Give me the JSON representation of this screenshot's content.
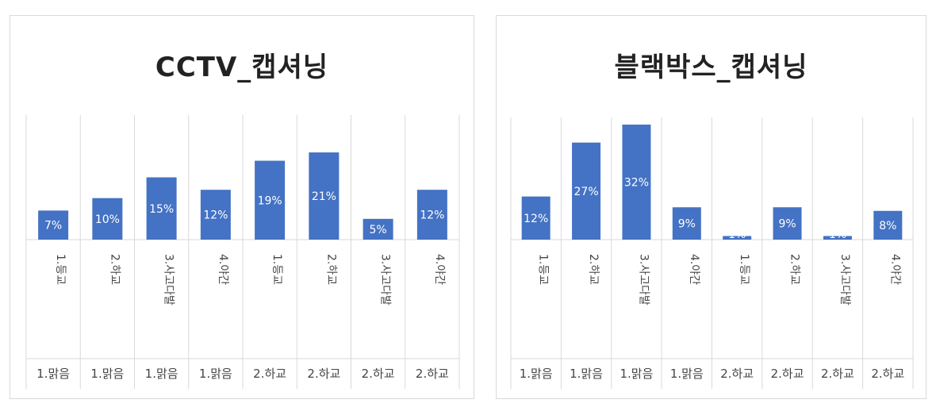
{
  "chart_data": [
    {
      "type": "bar",
      "title": "CCTV_캡셔닝",
      "categories": [
        "1.등교",
        "2.하교",
        "3.사고다발",
        "4.야간",
        "1.등교",
        "2.하교",
        "3.사고다발",
        "4.야간"
      ],
      "groups": [
        "1.맑음",
        "1.맑음",
        "1.맑음",
        "1.맑음",
        "2.하교",
        "2.하교",
        "2.하교",
        "2.하교"
      ],
      "values": [
        7,
        10,
        15,
        12,
        19,
        21,
        5,
        12
      ],
      "data_labels": [
        "7%",
        "10%",
        "15%",
        "12%",
        "19%",
        "21%",
        "5%",
        "12%"
      ],
      "ylim": [
        0,
        30
      ],
      "grid": false,
      "legend": "none",
      "bar_color": "#4472c4"
    },
    {
      "type": "bar",
      "title": "블랙박스_캡셔닝",
      "categories": [
        "1.등교",
        "2.하교",
        "3.사고다발",
        "4.야간",
        "1.등교",
        "2.하교",
        "3.사고다발",
        "4.야간"
      ],
      "groups": [
        "1.맑음",
        "1.맑음",
        "1.맑음",
        "1.맑음",
        "2.하교",
        "2.하교",
        "2.하교",
        "2.하교"
      ],
      "values": [
        12,
        27,
        32,
        9,
        1,
        9,
        1,
        8
      ],
      "data_labels": [
        "12%",
        "27%",
        "32%",
        "9%",
        "1%",
        "9%",
        "1%",
        "8%"
      ],
      "ylim": [
        0,
        34
      ],
      "grid": false,
      "legend": "none",
      "bar_color": "#4472c4"
    }
  ]
}
